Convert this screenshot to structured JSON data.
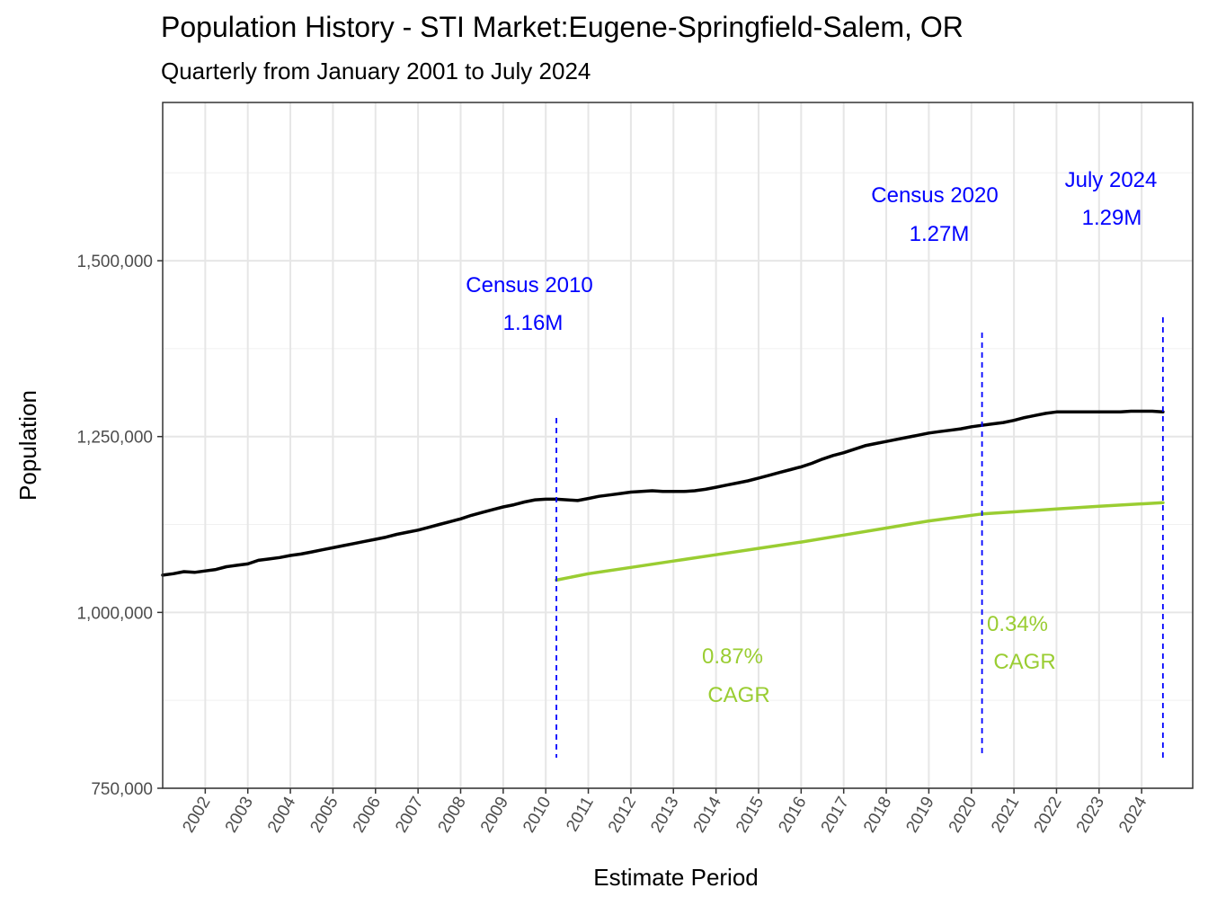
{
  "chart_data": {
    "type": "line",
    "title": "Population History - STI Market:Eugene-Springfield-Salem, OR",
    "subtitle": "Quarterly from January 2001 to July 2024",
    "xlabel": "Estimate Period",
    "ylabel": "Population",
    "xlim": [
      2001.0,
      2025.2
    ],
    "ylim": [
      750000,
      1725000
    ],
    "y_ticks": [
      750000,
      1000000,
      1250000,
      1500000
    ],
    "y_tick_labels": [
      "750,000",
      "1,000,000",
      "1,250,000",
      "1,500,000"
    ],
    "x_ticks": [
      2002,
      2003,
      2004,
      2005,
      2006,
      2007,
      2008,
      2009,
      2010,
      2011,
      2012,
      2013,
      2014,
      2015,
      2016,
      2017,
      2018,
      2019,
      2020,
      2021,
      2022,
      2023,
      2024
    ],
    "x_tick_labels": [
      "2002",
      "2003",
      "2004",
      "2005",
      "2006",
      "2007",
      "2008",
      "2009",
      "2010",
      "2011",
      "2012",
      "2013",
      "2014",
      "2015",
      "2016",
      "2017",
      "2018",
      "2019",
      "2020",
      "2021",
      "2022",
      "2023",
      "2024"
    ],
    "grid": true,
    "series": [
      {
        "color": "#000000",
        "x": [
          2001.0,
          2001.25,
          2001.5,
          2001.75,
          2002.0,
          2002.25,
          2002.5,
          2002.75,
          2003.0,
          2003.25,
          2003.5,
          2003.75,
          2004.0,
          2004.25,
          2004.5,
          2004.75,
          2005.0,
          2005.25,
          2005.5,
          2005.75,
          2006.0,
          2006.25,
          2006.5,
          2006.75,
          2007.0,
          2007.25,
          2007.5,
          2007.75,
          2008.0,
          2008.25,
          2008.5,
          2008.75,
          2009.0,
          2009.25,
          2009.5,
          2009.75,
          2010.0,
          2010.25,
          2010.5,
          2010.75,
          2011.0,
          2011.25,
          2011.5,
          2011.75,
          2012.0,
          2012.25,
          2012.5,
          2012.75,
          2013.0,
          2013.25,
          2013.5,
          2013.75,
          2014.0,
          2014.25,
          2014.5,
          2014.75,
          2015.0,
          2015.25,
          2015.5,
          2015.75,
          2016.0,
          2016.25,
          2016.5,
          2016.75,
          2017.0,
          2017.25,
          2017.5,
          2017.75,
          2018.0,
          2018.25,
          2018.5,
          2018.75,
          2019.0,
          2019.25,
          2019.5,
          2019.75,
          2020.0,
          2020.25,
          2020.5,
          2020.75,
          2021.0,
          2021.25,
          2021.5,
          2021.75,
          2022.0,
          2022.25,
          2022.5,
          2022.75,
          2023.0,
          2023.25,
          2023.5,
          2023.75,
          2024.0,
          2024.25,
          2024.5
        ],
        "values": [
          1053000,
          1055000,
          1058000,
          1057000,
          1059000,
          1061000,
          1065000,
          1067000,
          1069000,
          1074000,
          1076000,
          1078000,
          1081000,
          1083000,
          1086000,
          1089000,
          1092000,
          1095000,
          1098000,
          1101000,
          1104000,
          1107000,
          1111000,
          1114000,
          1117000,
          1121000,
          1125000,
          1129000,
          1133000,
          1138000,
          1142000,
          1146000,
          1150000,
          1153000,
          1157000,
          1160000,
          1161000,
          1161000,
          1160000,
          1159000,
          1162000,
          1165000,
          1167000,
          1169000,
          1171000,
          1172000,
          1173000,
          1172000,
          1172000,
          1172000,
          1173000,
          1175000,
          1178000,
          1181000,
          1184000,
          1187000,
          1191000,
          1195000,
          1199000,
          1203000,
          1207000,
          1212000,
          1218000,
          1223000,
          1227000,
          1232000,
          1237000,
          1240000,
          1243000,
          1246000,
          1249000,
          1252000,
          1255000,
          1257000,
          1259000,
          1261000,
          1264000,
          1266000,
          1268000,
          1270000,
          1273000,
          1277000,
          1280000,
          1283000,
          1285000,
          1285000,
          1285000,
          1285000,
          1285000,
          1285000,
          1285000,
          1286000,
          1286000,
          1286000,
          1285000
        ]
      },
      {
        "color": "#9acd32",
        "x": [
          2010.25,
          2011,
          2012,
          2013,
          2014,
          2015,
          2016,
          2017,
          2018,
          2019,
          2020.25,
          2021,
          2022,
          2023,
          2024.5
        ],
        "values": [
          1046000,
          1055000,
          1064000,
          1073000,
          1082000,
          1091000,
          1100000,
          1110000,
          1120000,
          1130000,
          1140000,
          1143000,
          1147000,
          1151000,
          1156000
        ]
      }
    ],
    "vlines": [
      {
        "x": 2010.25,
        "color": "#0000ff",
        "style": "dashed"
      },
      {
        "x": 2020.25,
        "color": "#0000ff",
        "style": "dashed"
      },
      {
        "x": 2024.5,
        "color": "#0000ff",
        "style": "dashed"
      }
    ],
    "annotations": [
      {
        "text": "Census 2010",
        "color": "#0000ff"
      },
      {
        "text": "1.16M",
        "color": "#0000ff"
      },
      {
        "text": "Census 2020",
        "color": "#0000ff"
      },
      {
        "text": "1.27M",
        "color": "#0000ff"
      },
      {
        "text": "July 2024",
        "color": "#0000ff"
      },
      {
        "text": "1.29M",
        "color": "#0000ff"
      },
      {
        "text": "0.87%",
        "color": "#9acd32"
      },
      {
        "text": "CAGR",
        "color": "#9acd32"
      },
      {
        "text": "0.34%",
        "color": "#9acd32"
      },
      {
        "text": "CAGR",
        "color": "#9acd32"
      }
    ]
  }
}
